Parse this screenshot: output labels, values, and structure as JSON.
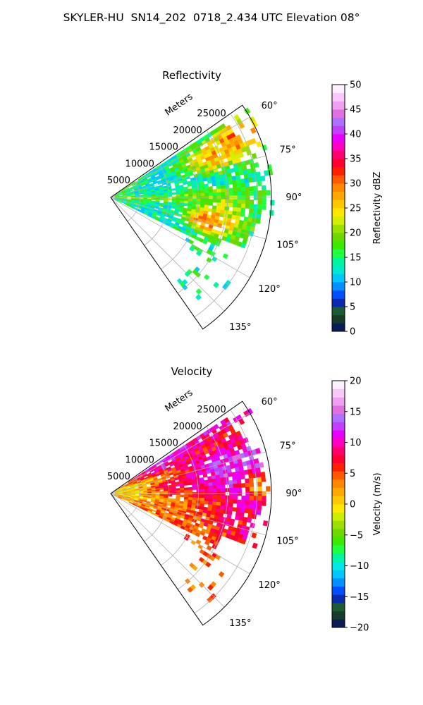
{
  "title": "SKYLER-HU  SN14_202  0718_2.434 UTC Elevation 08°",
  "chart_data": [
    {
      "type": "heatmap",
      "subtype": "polar-sector (radar PPI)",
      "title": "Reflectivity",
      "radius_label": "Meters",
      "range_ticks": [
        5000,
        10000,
        15000,
        20000,
        25000
      ],
      "range_tick_labels": [
        "5000",
        "10000",
        "15000",
        "20000",
        "25000"
      ],
      "range_lim": [
        0,
        27500
      ],
      "azimuth_ticks": [
        60,
        75,
        90,
        105,
        120,
        135
      ],
      "azimuth_tick_labels": [
        "60°",
        "75°",
        "90°",
        "105°",
        "120°",
        "135°"
      ],
      "azimuth_lim": [
        55,
        145
      ],
      "grid": true,
      "colorbar": {
        "label": "Reflectivity dBZ",
        "min": 0,
        "max": 50,
        "ticks": [
          0,
          5,
          10,
          15,
          20,
          25,
          30,
          35,
          40,
          45,
          50
        ],
        "tick_labels": [
          "0",
          "5",
          "10",
          "15",
          "20",
          "25",
          "30",
          "35",
          "40",
          "45",
          "50"
        ],
        "colors": [
          "#0b1b5a",
          "#183a2a",
          "#1d5c32",
          "#0a2ab0",
          "#0050ff",
          "#0090ff",
          "#00c8ff",
          "#00e8d0",
          "#00f5a0",
          "#20ff40",
          "#3ee800",
          "#6cd800",
          "#9be000",
          "#d6ee00",
          "#ffe800",
          "#ffc800",
          "#ffa800",
          "#ff8800",
          "#ff5a00",
          "#ff2000",
          "#ff0030",
          "#ff0070",
          "#ff00c0",
          "#e800ff",
          "#c040ff",
          "#b070ff",
          "#e070e0",
          "#f0a0f0",
          "#f8c8f8",
          "#fff0ff"
        ]
      }
    },
    {
      "type": "heatmap",
      "subtype": "polar-sector (radar PPI)",
      "title": "Velocity",
      "radius_label": "Meters",
      "range_ticks": [
        5000,
        10000,
        15000,
        20000,
        25000
      ],
      "range_tick_labels": [
        "5000",
        "10000",
        "15000",
        "20000",
        "25000"
      ],
      "range_lim": [
        0,
        27500
      ],
      "azimuth_ticks": [
        60,
        75,
        90,
        105,
        120,
        135
      ],
      "azimuth_tick_labels": [
        "60°",
        "75°",
        "90°",
        "105°",
        "120°",
        "135°"
      ],
      "azimuth_lim": [
        55,
        145
      ],
      "grid": true,
      "colorbar": {
        "label": "Velocity (m/s)",
        "min": -20,
        "max": 20,
        "ticks": [
          -20,
          -15,
          -10,
          -5,
          0,
          5,
          10,
          15,
          20
        ],
        "tick_labels": [
          "−20",
          "−15",
          "−10",
          "−5",
          "0",
          "5",
          "10",
          "15",
          "20"
        ],
        "colors": [
          "#0b1b5a",
          "#183a2a",
          "#1d5c32",
          "#0a2ab0",
          "#0050ff",
          "#0090ff",
          "#00c8ff",
          "#00e8e8",
          "#00f5a0",
          "#20ff40",
          "#3ee800",
          "#6cd800",
          "#9be000",
          "#c8f000",
          "#ffe800",
          "#ffc800",
          "#ffa800",
          "#ff8800",
          "#ff5a00",
          "#ff2000",
          "#ff0030",
          "#ff0070",
          "#ff00c0",
          "#e800ff",
          "#c040ff",
          "#b070ff",
          "#e070e0",
          "#f0a0f0",
          "#f8c8f8",
          "#fff0ff"
        ]
      }
    }
  ]
}
